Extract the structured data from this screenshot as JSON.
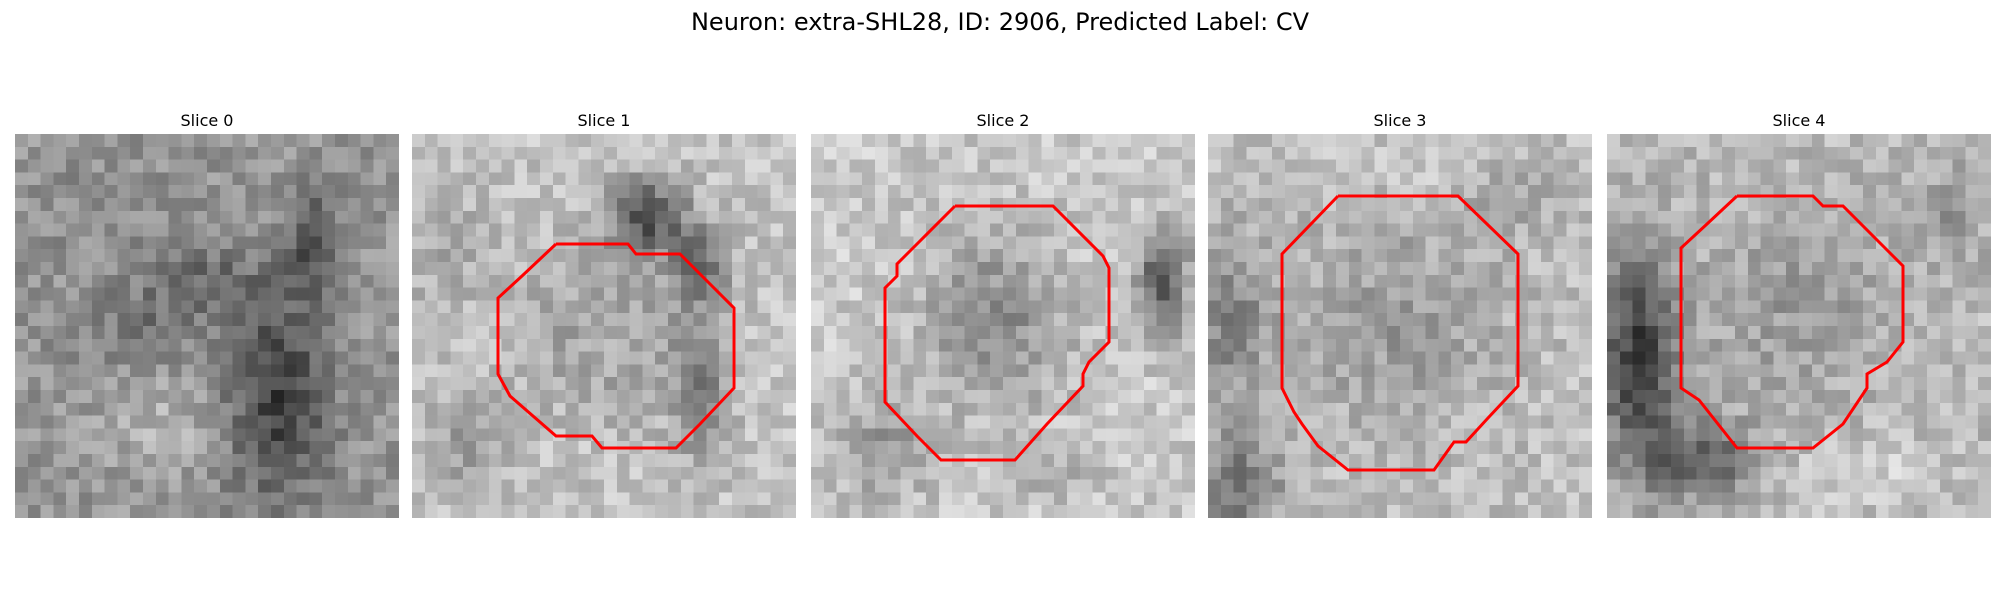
{
  "figure": {
    "title": "Neuron: extra-SHL28, ID: 2906, Predicted Label: CV"
  },
  "contour_color": "#ff0000",
  "panels": [
    {
      "title": "Slice 0",
      "has_contour": false
    },
    {
      "title": "Slice 1",
      "has_contour": true
    },
    {
      "title": "Slice 2",
      "has_contour": true
    },
    {
      "title": "Slice 3",
      "has_contour": true
    },
    {
      "title": "Slice 4",
      "has_contour": true
    }
  ]
}
